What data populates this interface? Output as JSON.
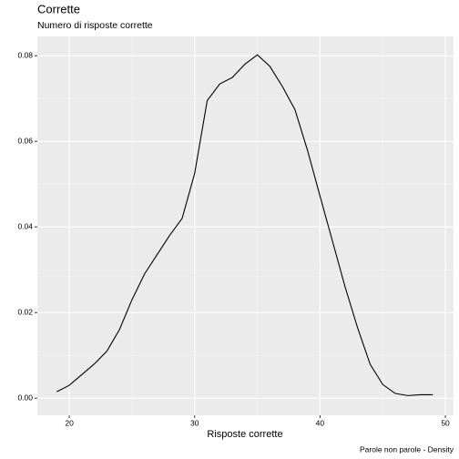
{
  "chart_data": {
    "type": "line",
    "title": "Corrette",
    "subtitle": "Numero di risposte corrette",
    "x_label": "Risposte corrette",
    "caption": "Parole non parole - Density",
    "x": [
      19,
      20,
      21,
      22,
      23,
      24,
      25,
      26,
      27,
      28,
      29,
      30,
      31,
      32,
      33,
      34,
      35,
      36,
      37,
      38,
      39,
      40,
      41,
      42,
      43,
      44,
      45,
      46,
      47,
      48,
      49
    ],
    "series": [
      {
        "name": "density",
        "color": "#000000",
        "values": [
          0.0015,
          0.003,
          0.0055,
          0.008,
          0.011,
          0.016,
          0.023,
          0.029,
          0.0335,
          0.038,
          0.042,
          0.0525,
          0.0695,
          0.0734,
          0.0749,
          0.078,
          0.0802,
          0.0775,
          0.0728,
          0.0674,
          0.0579,
          0.0472,
          0.0366,
          0.026,
          0.0164,
          0.0079,
          0.0032,
          0.0011,
          0.0006,
          0.0008,
          0.0008
        ]
      }
    ],
    "xlim": [
      17.45,
      50.65
    ],
    "ylim": [
      -0.004,
      0.0845
    ],
    "xticks": [
      20,
      30,
      40,
      50
    ],
    "yticks": [
      {
        "value": 0,
        "label": "0.00"
      },
      {
        "value": 0.02,
        "label": "0.02"
      },
      {
        "value": 0.04,
        "label": "0.04"
      },
      {
        "value": 0.06,
        "label": "0.06"
      },
      {
        "value": 0.08,
        "label": "0.08"
      }
    ],
    "grid": true,
    "minor_grid": true
  }
}
